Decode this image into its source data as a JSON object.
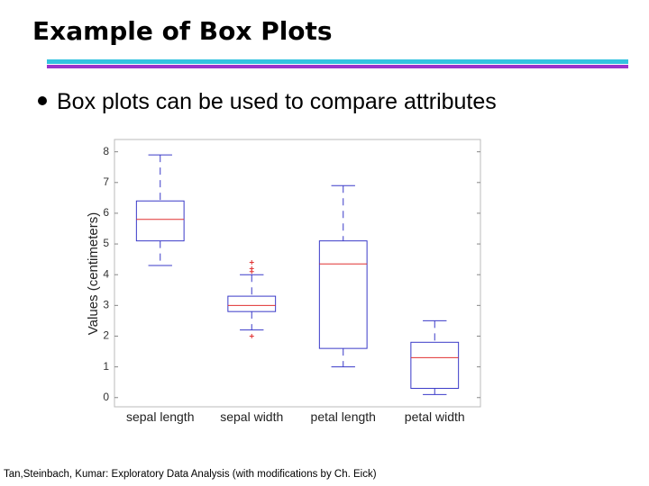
{
  "slide": {
    "title": "Example of Box Plots",
    "bullet": "Box plots can be used to compare attributes",
    "footer": "Tan,Steinbach, Kumar: Exploratory Data Analysis (with modifications by Ch. Eick)"
  },
  "chart_data": {
    "type": "box",
    "ylabel": "Values (centimeters)",
    "categories": [
      "sepal length",
      "sepal width",
      "petal length",
      "petal width"
    ],
    "boxes": [
      {
        "whislo": 4.3,
        "q1": 5.1,
        "med": 5.8,
        "q3": 6.4,
        "whishi": 7.9
      },
      {
        "whislo": 2.2,
        "q1": 2.8,
        "med": 3.0,
        "q3": 3.3,
        "whishi": 4.0,
        "fliers": [
          4.1,
          4.2,
          4.4,
          2.0
        ]
      },
      {
        "whislo": 1.0,
        "q1": 1.6,
        "med": 4.35,
        "q3": 5.1,
        "whishi": 6.9
      },
      {
        "whislo": 0.1,
        "q1": 0.3,
        "med": 1.3,
        "q3": 1.8,
        "whishi": 2.5
      }
    ],
    "box_color": "#3a3ac8",
    "median_color": "#e03030",
    "flier_color": "#e03030",
    "ylim": [
      -0.3,
      8.4
    ],
    "yticks": [
      0,
      1,
      2,
      3,
      4,
      5,
      6,
      7,
      8
    ]
  }
}
